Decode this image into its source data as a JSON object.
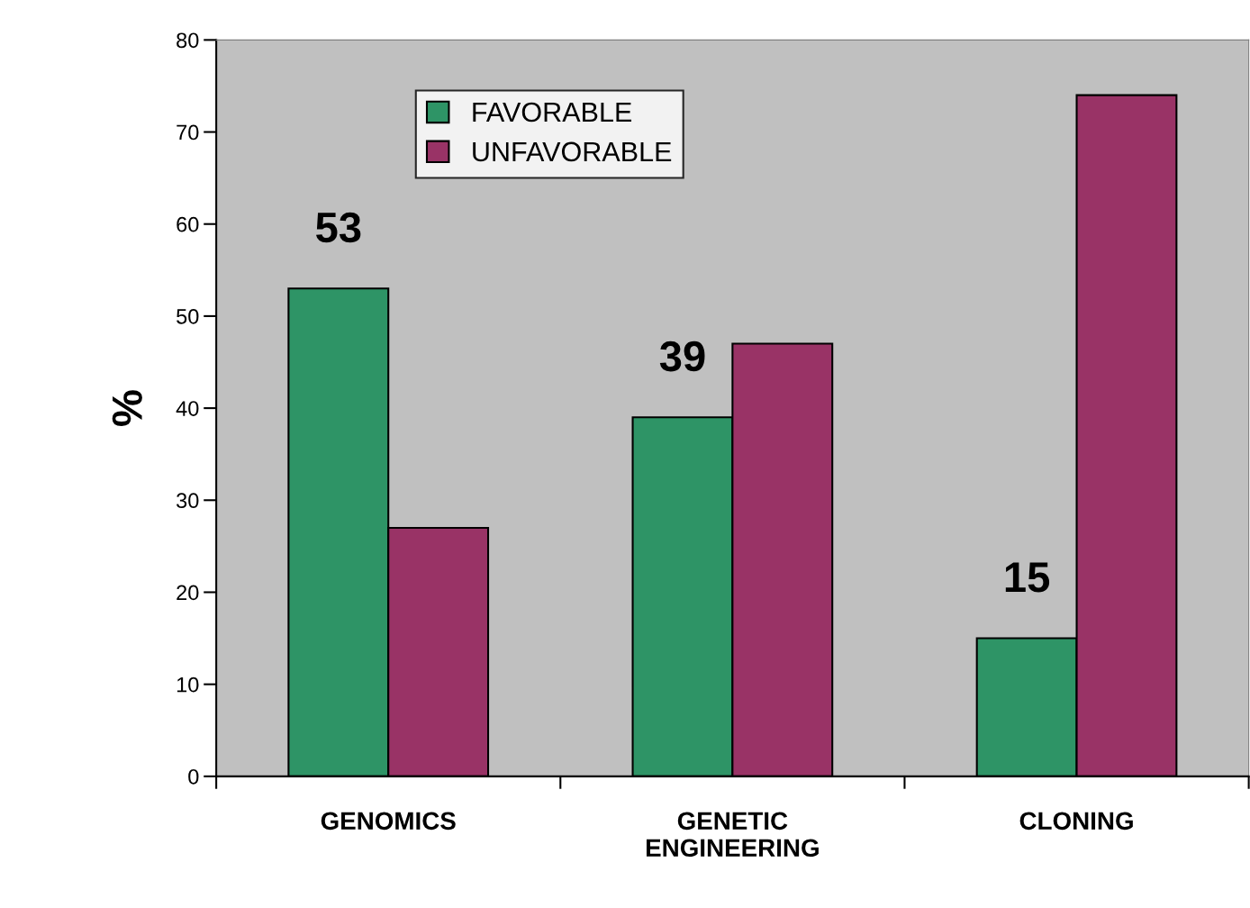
{
  "chart_data": {
    "type": "bar",
    "ylabel": "%",
    "categories": [
      "GENOMICS",
      "GENETIC\nENGINEERING",
      "CLONING"
    ],
    "series": [
      {
        "name": "FAVORABLE",
        "color": "#2e9466",
        "values": [
          53,
          39,
          15
        ],
        "value_labels": [
          "53",
          "39",
          "15"
        ]
      },
      {
        "name": "UNFAVORABLE",
        "color": "#993366",
        "values": [
          27,
          47,
          74
        ]
      }
    ],
    "ylim": [
      0,
      80
    ],
    "yticks": [
      0,
      10,
      20,
      30,
      40,
      50,
      60,
      70,
      80
    ],
    "grid": false,
    "legend": "top left"
  }
}
